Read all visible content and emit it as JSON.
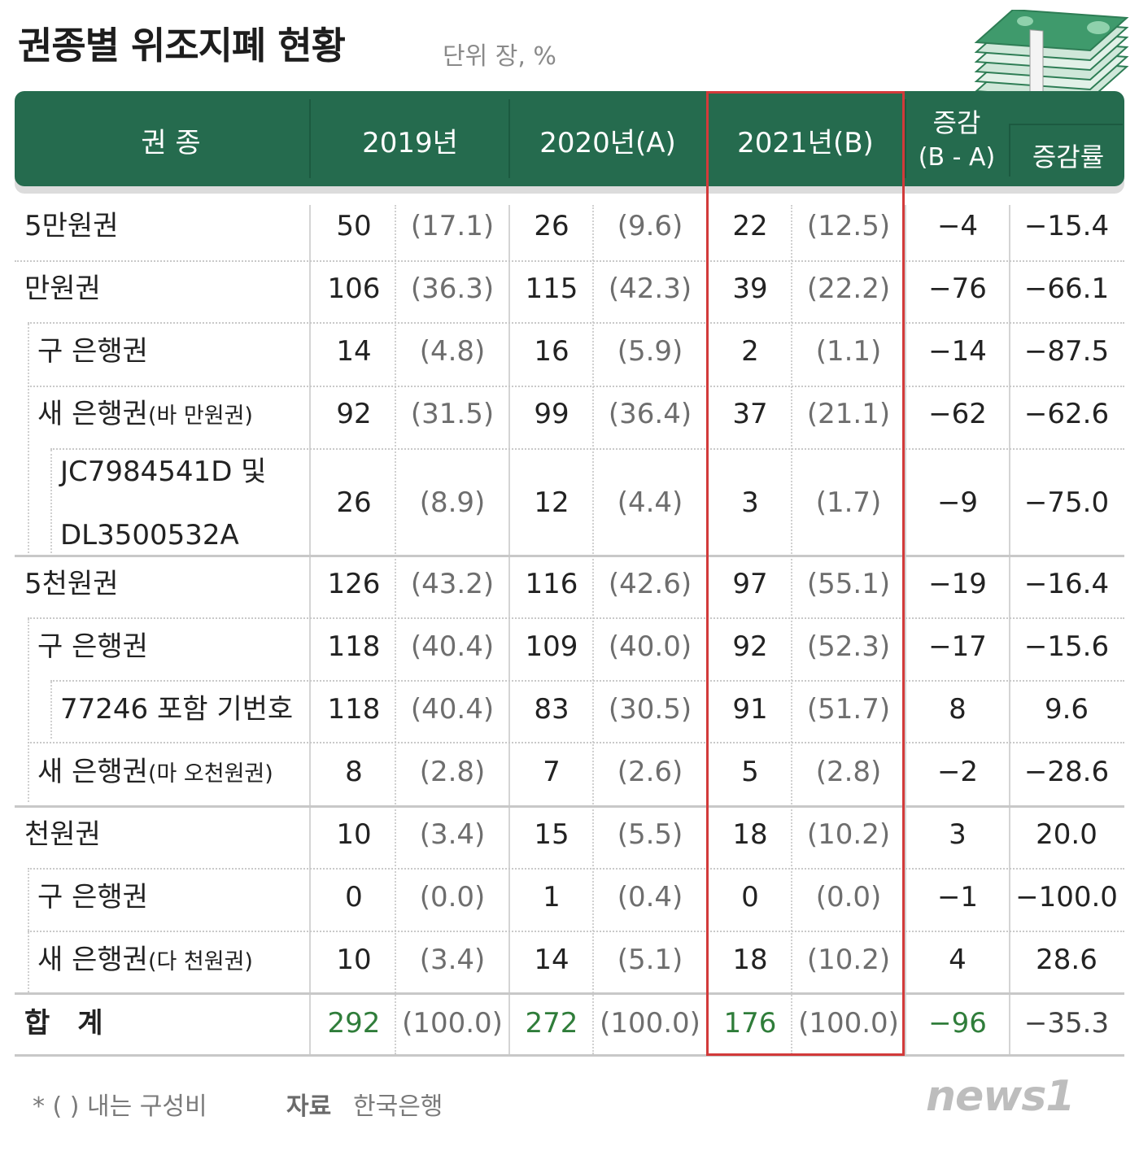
{
  "title": "권종별 위조지폐 현황",
  "unit": "단위 장, %",
  "colors": {
    "header": "#256b4e",
    "highlight": "#d23a3a",
    "total_green": "#2f7d3a"
  },
  "chart_data": {
    "type": "table",
    "headers": {
      "category": "권 종",
      "y2019": "2019년",
      "y2020": "2020년(A)",
      "y2021": "2021년(B)",
      "diff_top": "증감",
      "diff_bottom": "(B - A)",
      "rate": "증감률"
    },
    "rows": [
      {
        "label": "5만원권",
        "v2019": "50",
        "p2019": "(17.1)",
        "v2020": "26",
        "p2020": "(9.6)",
        "v2021": "22",
        "p2021": "(12.5)",
        "diff": "−4",
        "rate": "−15.4"
      },
      {
        "label": "만원권",
        "v2019": "106",
        "p2019": "(36.3)",
        "v2020": "115",
        "p2020": "(42.3)",
        "v2021": "39",
        "p2021": "(22.2)",
        "diff": "−76",
        "rate": "−66.1"
      },
      {
        "label": "구 은행권",
        "v2019": "14",
        "p2019": "(4.8)",
        "v2020": "16",
        "p2020": "(5.9)",
        "v2021": "2",
        "p2021": "(1.1)",
        "diff": "−14",
        "rate": "−87.5"
      },
      {
        "label": "새 은행권",
        "label_small": "(바 만원권)",
        "v2019": "92",
        "p2019": "(31.5)",
        "v2020": "99",
        "p2020": "(36.4)",
        "v2021": "37",
        "p2021": "(21.1)",
        "diff": "−62",
        "rate": "−62.6"
      },
      {
        "label": "JC7984541D 및",
        "label2": "DL3500532A",
        "v2019": "26",
        "p2019": "(8.9)",
        "v2020": "12",
        "p2020": "(4.4)",
        "v2021": "3",
        "p2021": "(1.7)",
        "diff": "−9",
        "rate": "−75.0"
      },
      {
        "label": "5천원권",
        "v2019": "126",
        "p2019": "(43.2)",
        "v2020": "116",
        "p2020": "(42.6)",
        "v2021": "97",
        "p2021": "(55.1)",
        "diff": "−19",
        "rate": "−16.4"
      },
      {
        "label": "구 은행권",
        "v2019": "118",
        "p2019": "(40.4)",
        "v2020": "109",
        "p2020": "(40.0)",
        "v2021": "92",
        "p2021": "(52.3)",
        "diff": "−17",
        "rate": "−15.6"
      },
      {
        "label": "77246 포함 기번호",
        "v2019": "118",
        "p2019": "(40.4)",
        "v2020": "83",
        "p2020": "(30.5)",
        "v2021": "91",
        "p2021": "(51.7)",
        "diff": "8",
        "rate": "9.6"
      },
      {
        "label": "새 은행권",
        "label_small": "(마 오천원권)",
        "v2019": "8",
        "p2019": "(2.8)",
        "v2020": "7",
        "p2020": "(2.6)",
        "v2021": "5",
        "p2021": "(2.8)",
        "diff": "−2",
        "rate": "−28.6"
      },
      {
        "label": "천원권",
        "v2019": "10",
        "p2019": "(3.4)",
        "v2020": "15",
        "p2020": "(5.5)",
        "v2021": "18",
        "p2021": "(10.2)",
        "diff": "3",
        "rate": "20.0"
      },
      {
        "label": "구 은행권",
        "v2019": "0",
        "p2019": "(0.0)",
        "v2020": "1",
        "p2020": "(0.4)",
        "v2021": "0",
        "p2021": "(0.0)",
        "diff": "−1",
        "rate": "−100.0"
      },
      {
        "label": "새 은행권",
        "label_small": "(다 천원권)",
        "v2019": "10",
        "p2019": "(3.4)",
        "v2020": "14",
        "p2020": "(5.1)",
        "v2021": "18",
        "p2021": "(10.2)",
        "diff": "4",
        "rate": "28.6"
      },
      {
        "label": "합　계",
        "v2019": "292",
        "p2019": "(100.0)",
        "v2020": "272",
        "p2020": "(100.0)",
        "v2021": "176",
        "p2021": "(100.0)",
        "diff": "−96",
        "rate": "−35.3"
      }
    ]
  },
  "footnote": "* (  ) 내는 구성비",
  "source_label": "자료",
  "source": "한국은행",
  "logo": "news1"
}
